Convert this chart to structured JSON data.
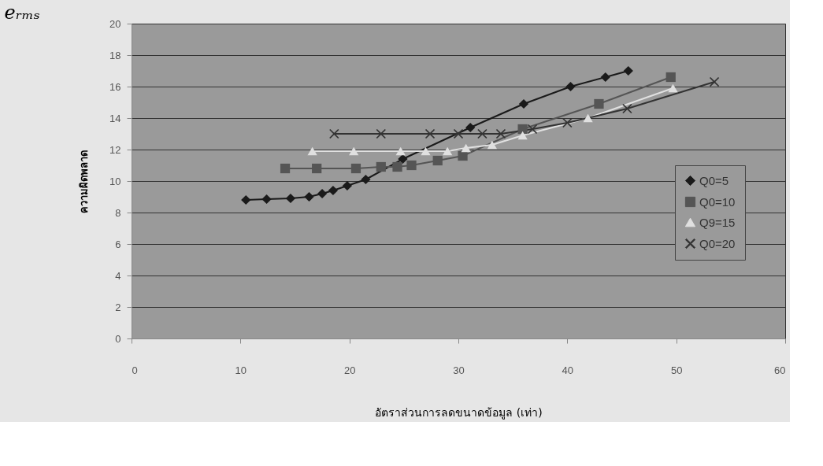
{
  "chart_data": {
    "type": "line",
    "title": "eᵣₘₛ",
    "xlabel": "อัตราส่วนการลดขนาดข้อมูล (เท่า)",
    "ylabel": "ความผิดพลาด",
    "xlim": [
      0,
      60
    ],
    "xticks": [
      0,
      10,
      20,
      30,
      40,
      50,
      60
    ],
    "ylim": [
      0,
      20
    ],
    "yticks": [
      0,
      2,
      4,
      6,
      8,
      10,
      12,
      14,
      16,
      18,
      20
    ],
    "grid": "y",
    "legend": "right",
    "line_style": "solid",
    "series": [
      {
        "name": "Q0=5",
        "color": "#1a1a1a",
        "marker": "diamond",
        "x": [
          10.5,
          12.4,
          14.6,
          16.3,
          17.5,
          18.5,
          19.8,
          21.5,
          24.9,
          31.1,
          36.0,
          40.3,
          43.5,
          45.6
        ],
        "values": [
          8.8,
          8.85,
          8.9,
          9.0,
          9.2,
          9.4,
          9.7,
          10.1,
          11.4,
          13.4,
          14.9,
          16.0,
          16.6,
          17.0
        ]
      },
      {
        "name": "Q0=10",
        "color": "#555555",
        "marker": "square",
        "x": [
          14.1,
          17.0,
          20.6,
          22.9,
          24.4,
          25.7,
          28.1,
          30.4,
          35.9,
          42.9,
          49.5
        ],
        "values": [
          10.8,
          10.8,
          10.8,
          10.9,
          10.9,
          11.0,
          11.3,
          11.6,
          13.3,
          14.9,
          16.6
        ]
      },
      {
        "name": "Q9=15",
        "color": "#e0e0e0",
        "marker": "triangle",
        "x": [
          16.6,
          20.4,
          24.7,
          27.0,
          29.0,
          30.7,
          33.1,
          35.9,
          41.9,
          49.7
        ],
        "values": [
          11.9,
          11.9,
          11.9,
          11.9,
          11.9,
          12.1,
          12.3,
          12.9,
          14.0,
          15.9
        ]
      },
      {
        "name": "Q0=20",
        "color": "#333333",
        "marker": "cross",
        "x": [
          18.6,
          22.9,
          27.4,
          30.0,
          32.2,
          33.9,
          36.8,
          40.0,
          45.5,
          53.5
        ],
        "values": [
          13.0,
          13.0,
          13.0,
          13.0,
          13.0,
          13.0,
          13.3,
          13.7,
          14.6,
          16.3
        ]
      }
    ]
  }
}
